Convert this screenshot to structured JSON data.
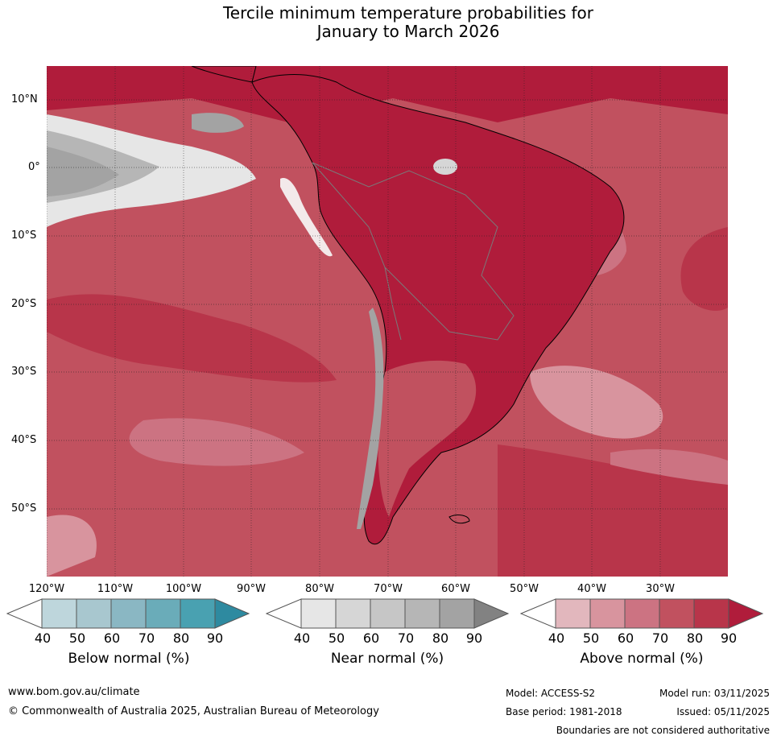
{
  "title": {
    "line1": "Tercile minimum temperature probabilities for",
    "line2": "January to March 2026"
  },
  "map": {
    "region": "South America and adjacent oceans",
    "lat_labels": [
      "10°N",
      "0°",
      "10°S",
      "20°S",
      "30°S",
      "40°S",
      "50°S"
    ],
    "lon_labels": [
      "120°W",
      "110°W",
      "100°W",
      "90°W",
      "80°W",
      "70°W",
      "60°W",
      "50°W",
      "40°W",
      "30°W"
    ]
  },
  "legend": {
    "ticks": [
      "40",
      "50",
      "60",
      "70",
      "80",
      "90"
    ],
    "below": {
      "title": "Below normal (%)",
      "colors": [
        "#ffffff",
        "#bed6dc",
        "#a8c7cf",
        "#8ab7c3",
        "#6aacb9",
        "#49a1b1",
        "#2e8aa0"
      ]
    },
    "near": {
      "title": "Near normal (%)",
      "colors": [
        "#ffffff",
        "#e6e6e6",
        "#d6d6d6",
        "#c6c6c6",
        "#b6b6b6",
        "#a3a3a3",
        "#828282"
      ]
    },
    "above": {
      "title": "Above normal (%)",
      "colors": [
        "#ffffff",
        "#e2b7bd",
        "#d8949e",
        "#cc7382",
        "#c1515f",
        "#b8354a",
        "#b01c3b"
      ]
    }
  },
  "footer": {
    "url": "www.bom.gov.au/climate",
    "copyright": "© Commonwealth of Australia 2025, Australian Bureau of Meteorology",
    "model": "Model: ACCESS-S2",
    "model_run": "Model run: 03/11/2025",
    "base_period": "Base period: 1981-2018",
    "issued": "Issued: 05/11/2025",
    "disclaimer": "Boundaries are not considered authoritative"
  }
}
